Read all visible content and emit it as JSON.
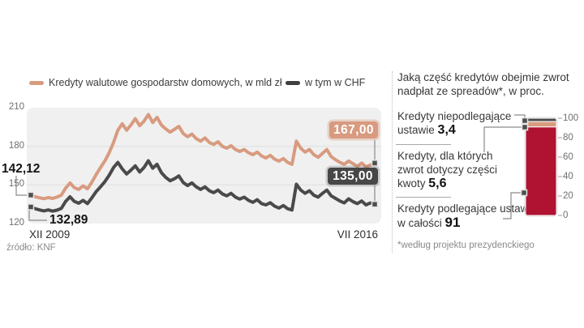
{
  "left_chart": {
    "source": "źródło: KNF",
    "start_labels": [
      "142,12",
      "132,89"
    ],
    "end_labels": [
      "167,00",
      "135,00"
    ]
  },
  "right_panel": {
    "title": "Jaką część kredytów obejmie zwrot nadpłat ze spreadów*, w proc.",
    "items": [
      {
        "text": "Kredyty niepodlegające ustawie",
        "value": "3,4"
      },
      {
        "text": "Kredyty, dla których zwrot dotyczy części kwoty",
        "value": "5,6"
      },
      {
        "text": "Kredyty podlegające ustawie w całości",
        "value": "91"
      }
    ],
    "footnote": "*według projektu prezydenckiego"
  },
  "colors": {
    "salmon": "#d89b80",
    "dark_gray": "#4a4a4a",
    "red": "#b01231",
    "plot_bg": "#f1f0f0",
    "gridline": "#dfdede",
    "leader": "#8a8a8a"
  },
  "chart_data": [
    {
      "type": "line",
      "title": "",
      "x_range": [
        "XII 2009",
        "VII 2016"
      ],
      "x_unit": "monthly",
      "ylim": [
        120,
        210
      ],
      "yticks": [
        210,
        180,
        150,
        120
      ],
      "grid": "horizontal",
      "legend_position": "top",
      "series": [
        {
          "name": "Kredyty walutowe gospodarstw domowych, w mld zł",
          "color": "#d89b80",
          "first_value": 142.12,
          "last_value": 167.0,
          "values": [
            142.12,
            140.8,
            140.0,
            139.3,
            140.2,
            139.5,
            140.6,
            142.0,
            147.5,
            151.5,
            147.8,
            146.5,
            149.2,
            147.0,
            152.0,
            158.0,
            163.5,
            168.5,
            175.0,
            183.0,
            192.5,
            197.5,
            192.5,
            196.5,
            201.5,
            196.0,
            199.5,
            204.8,
            198.5,
            202.5,
            196.5,
            193.5,
            191.0,
            193.2,
            195.5,
            190.0,
            187.5,
            189.5,
            186.0,
            184.0,
            186.5,
            183.0,
            181.5,
            183.5,
            180.0,
            178.5,
            180.5,
            177.5,
            176.0,
            177.5,
            175.0,
            173.5,
            175.5,
            172.5,
            171.0,
            173.0,
            170.0,
            168.5,
            170.5,
            167.5,
            166.0,
            184.0,
            178.5,
            175.5,
            177.5,
            173.5,
            171.5,
            174.5,
            177.5,
            172.0,
            169.5,
            167.5,
            166.0,
            168.5,
            166.5,
            164.5,
            167.0,
            164.0,
            165.5,
            167.0
          ]
        },
        {
          "name": "w tym w CHF",
          "color": "#4a4a4a",
          "first_value": 132.89,
          "last_value": 135.0,
          "values": [
            132.89,
            131.5,
            130.6,
            129.8,
            130.6,
            129.6,
            130.4,
            131.8,
            137.2,
            140.8,
            137.2,
            135.8,
            138.0,
            135.5,
            139.8,
            144.8,
            148.5,
            152.5,
            157.5,
            163.5,
            167.5,
            162.5,
            158.5,
            161.5,
            164.8,
            160.0,
            163.5,
            168.8,
            163.0,
            166.0,
            159.5,
            155.8,
            153.2,
            154.8,
            157.0,
            152.0,
            149.5,
            151.5,
            148.5,
            146.5,
            148.5,
            145.5,
            144.0,
            146.0,
            143.0,
            141.5,
            143.5,
            140.5,
            139.0,
            140.5,
            138.0,
            136.5,
            138.5,
            135.5,
            134.5,
            136.2,
            133.5,
            132.0,
            134.0,
            131.5,
            130.5,
            150.5,
            146.0,
            143.5,
            145.5,
            142.0,
            140.5,
            143.5,
            146.0,
            141.5,
            139.5,
            137.5,
            136.0,
            139.2,
            137.0,
            135.5,
            137.5,
            134.5,
            136.0,
            135.0
          ]
        }
      ]
    },
    {
      "type": "bar",
      "subtype": "stacked-vertical-single",
      "title": "Jaką część kredytów obejmie zwrot nadpłat ze spreadów*, w proc.",
      "ylim": [
        0,
        100
      ],
      "ticks": [
        100,
        80,
        60,
        40,
        20,
        0
      ],
      "segments": [
        {
          "label": "Kredyty niepodlegające ustawie",
          "value": 3.4,
          "color": "#4a4a4a"
        },
        {
          "label": "Kredyty, dla których zwrot dotyczy części kwoty",
          "value": 5.6,
          "color": "#d89b80"
        },
        {
          "label": "Kredyty podlegające ustawie w całości",
          "value": 91,
          "color": "#b01231"
        }
      ],
      "footnote": "*według projektu prezydenckiego"
    }
  ]
}
